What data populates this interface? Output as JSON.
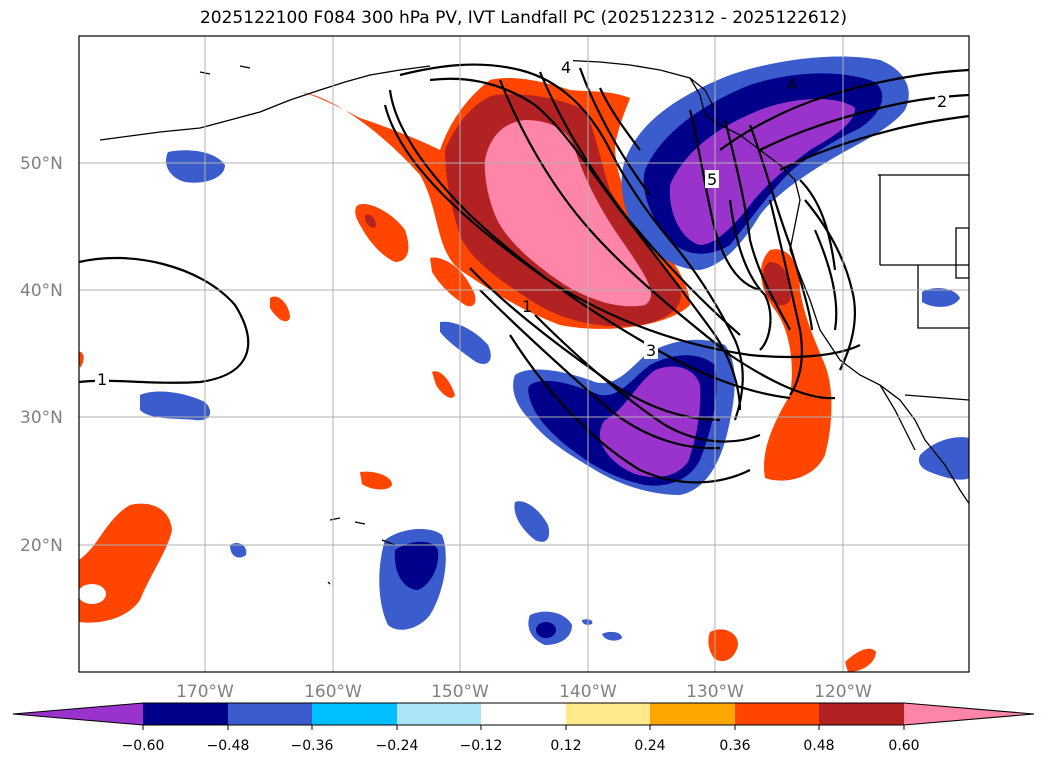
{
  "title": "2025122100 F084 300 hPa PV, IVT Landfall PC (2025122312 - 2025122612)",
  "map": {
    "lon_labels": [
      "170°W",
      "160°W",
      "150°W",
      "140°W",
      "130°W",
      "120°W"
    ],
    "lat_labels": [
      "50°N",
      "40°N",
      "30°N",
      "20°N"
    ],
    "contour_labels": [
      "1",
      "2",
      "3",
      "4",
      "5",
      "1",
      "4"
    ]
  },
  "colorbar": {
    "tick_labels": [
      "−0.60",
      "−0.48",
      "−0.36",
      "−0.24",
      "−0.12",
      "0.12",
      "0.24",
      "0.36",
      "0.48",
      "0.60"
    ],
    "colors": [
      "#9933cc",
      "#00008b",
      "#3a5ccc",
      "#00bfff",
      "#ade4f7",
      "#ffffff",
      "#ffe98a",
      "#ffa500",
      "#ff4500",
      "#b22222",
      "#ff85a8"
    ]
  }
}
